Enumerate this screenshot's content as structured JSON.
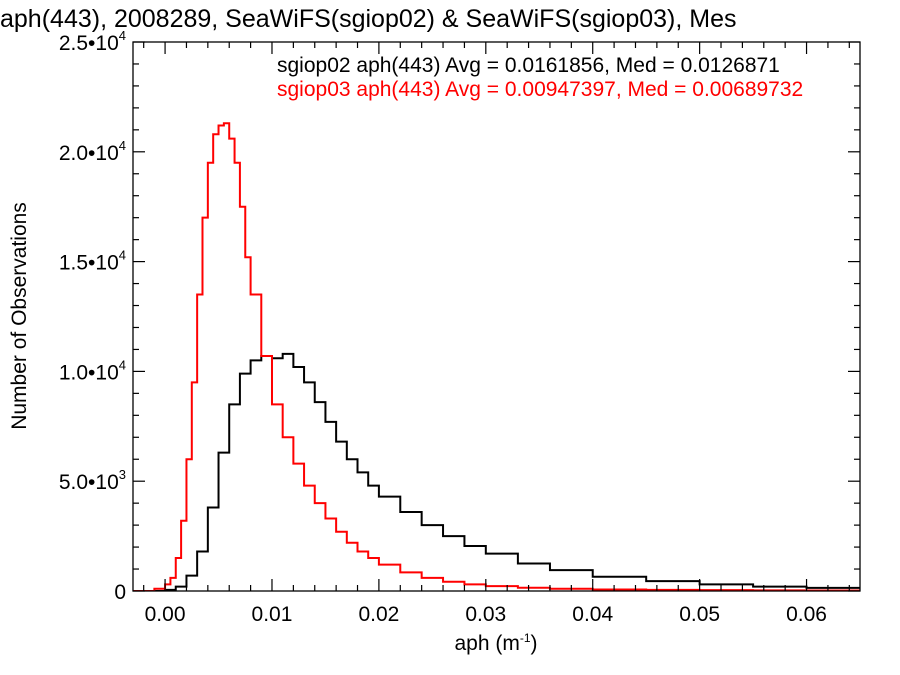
{
  "chart_data": {
    "type": "line",
    "title": "aph(443), 2008289, SeaWiFS(sgiop02) & SeaWiFS(sgiop03), Mes",
    "xlabel": "aph (m",
    "xlabel_sup": "-1",
    "xlabel_close": ")",
    "ylabel": "Number of Observations",
    "xlim": [
      -0.003,
      0.065
    ],
    "ylim": [
      0,
      25000
    ],
    "grid": false,
    "step": true,
    "x_ticks": [
      {
        "value": 0.0,
        "label": "0.00"
      },
      {
        "value": 0.01,
        "label": "0.01"
      },
      {
        "value": 0.02,
        "label": "0.02"
      },
      {
        "value": 0.03,
        "label": "0.03"
      },
      {
        "value": 0.04,
        "label": "0.04"
      },
      {
        "value": 0.05,
        "label": "0.05"
      },
      {
        "value": 0.06,
        "label": "0.06"
      }
    ],
    "y_ticks": [
      {
        "value": 0,
        "label": "0",
        "exp": ""
      },
      {
        "value": 5000,
        "label": "5.0•10",
        "exp": "3"
      },
      {
        "value": 10000,
        "label": "1.0•10",
        "exp": "4"
      },
      {
        "value": 15000,
        "label": "1.5•10",
        "exp": "4"
      },
      {
        "value": 20000,
        "label": "2.0•10",
        "exp": "4"
      },
      {
        "value": 25000,
        "label": "2.5•10",
        "exp": "4"
      }
    ],
    "annotations": [
      {
        "text": "sgiop02 aph(443) Avg = 0.0161856, Med = 0.0126871",
        "color": "#000000"
      },
      {
        "text": "sgiop03 aph(443) Avg = 0.00947397, Med = 0.00689732",
        "color": "#ff0000"
      }
    ],
    "series": [
      {
        "name": "sgiop02",
        "color": "#000000",
        "x": [
          -0.003,
          0.0,
          0.001,
          0.002,
          0.003,
          0.004,
          0.005,
          0.006,
          0.007,
          0.008,
          0.009,
          0.01,
          0.011,
          0.012,
          0.013,
          0.014,
          0.015,
          0.016,
          0.017,
          0.018,
          0.019,
          0.02,
          0.022,
          0.024,
          0.026,
          0.028,
          0.03,
          0.033,
          0.036,
          0.04,
          0.045,
          0.05,
          0.055,
          0.06,
          0.065
        ],
        "y": [
          0,
          50,
          200,
          700,
          1800,
          3800,
          6300,
          8500,
          9900,
          10500,
          10700,
          10600,
          10800,
          10200,
          9500,
          8600,
          7700,
          6800,
          6000,
          5400,
          4800,
          4300,
          3600,
          3000,
          2500,
          2050,
          1700,
          1250,
          950,
          650,
          450,
          300,
          200,
          140,
          100
        ]
      },
      {
        "name": "sgiop03",
        "color": "#ff0000",
        "x": [
          -0.003,
          -0.001,
          0.0,
          0.0005,
          0.001,
          0.0015,
          0.002,
          0.0025,
          0.003,
          0.0035,
          0.004,
          0.0045,
          0.005,
          0.0055,
          0.006,
          0.0065,
          0.007,
          0.0075,
          0.008,
          0.009,
          0.01,
          0.011,
          0.012,
          0.013,
          0.014,
          0.015,
          0.016,
          0.017,
          0.018,
          0.019,
          0.02,
          0.022,
          0.024,
          0.026,
          0.028,
          0.03,
          0.033,
          0.036,
          0.04,
          0.045,
          0.05,
          0.055,
          0.06,
          0.065
        ],
        "y": [
          0,
          100,
          300,
          600,
          1500,
          3200,
          6000,
          9500,
          13500,
          17000,
          19500,
          20800,
          21200,
          21300,
          20600,
          19500,
          17500,
          15200,
          13500,
          10700,
          8500,
          7000,
          5800,
          4800,
          4000,
          3300,
          2700,
          2200,
          1800,
          1500,
          1200,
          850,
          600,
          420,
          300,
          220,
          150,
          100,
          70,
          50,
          40,
          30,
          25,
          20
        ]
      }
    ]
  }
}
